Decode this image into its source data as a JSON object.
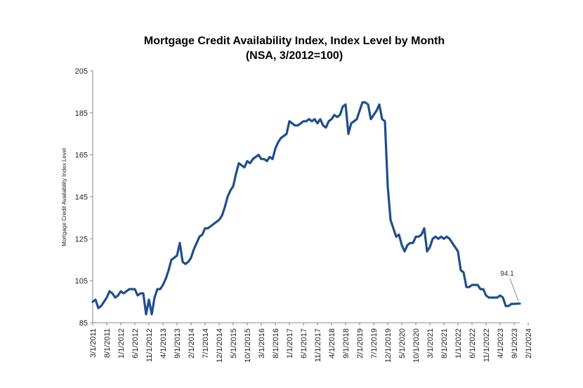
{
  "chart_data": {
    "type": "line",
    "title": "Mortgage Credit Availability Index, Index Level by Month",
    "subtitle": "(NSA, 3/2012=100)",
    "ylabel": "Mortgage Credit Availability Index Level",
    "xlabel": "",
    "ylim": [
      85,
      205
    ],
    "yticks": [
      "85",
      "105",
      "125",
      "145",
      "165",
      "185",
      "205"
    ],
    "xticks": [
      "3/1/2011",
      "8/1/2011",
      "1/1/2012",
      "6/1/2012",
      "11/1/2012",
      "4/1/2013",
      "9/1/2013",
      "2/1/2014",
      "7/1/2014",
      "12/1/2014",
      "5/1/2015",
      "10/1/2015",
      "3/1/2016",
      "8/1/2016",
      "1/1/2017",
      "6/1/2017",
      "11/1/2017",
      "4/1/2018",
      "9/1/2018",
      "2/1/2019",
      "7/1/2019",
      "12/1/2019",
      "5/1/2020",
      "10/1/2020",
      "3/1/2021",
      "8/1/2021",
      "1/1/2022",
      "6/1/2022",
      "11/1/2022",
      "4/1/2023",
      "9/1/2023",
      "2/1/2024"
    ],
    "grid": false,
    "legend": "none",
    "color": "#1f4e8c",
    "series": [
      {
        "values": [
          95,
          96,
          92,
          93,
          95,
          97,
          100,
          99,
          97,
          98,
          100,
          99,
          100,
          101,
          101,
          101,
          98,
          99,
          99,
          89,
          96,
          89,
          97,
          101,
          101,
          103,
          106,
          110,
          115,
          116,
          117,
          123,
          114,
          113,
          114,
          116,
          120,
          123,
          126,
          127,
          130,
          130,
          131,
          132,
          133,
          134,
          136,
          140,
          145,
          148,
          150,
          156,
          161,
          160,
          159,
          162,
          161,
          163,
          164,
          165,
          163,
          163,
          162,
          164,
          163,
          168,
          171,
          173,
          174,
          175,
          181,
          180,
          179,
          179,
          180,
          181,
          181,
          182,
          181,
          182,
          180,
          182,
          179,
          178,
          181,
          182,
          184,
          183,
          184,
          188,
          189,
          175,
          180,
          181,
          182,
          186,
          190,
          190,
          189,
          182,
          184,
          186,
          189,
          182,
          181,
          150,
          134,
          130,
          126,
          127,
          122,
          119,
          122,
          123,
          123,
          126,
          126,
          127,
          130,
          119,
          121,
          125,
          126,
          125,
          126,
          125,
          126,
          125,
          123,
          121,
          119,
          110,
          109,
          102,
          102,
          103,
          103,
          103,
          101,
          101,
          98,
          97,
          97,
          97,
          97,
          98,
          97,
          93,
          93,
          94,
          94,
          94.1,
          94.1
        ]
      }
    ],
    "annotations": [
      {
        "text": "94.1",
        "x": "last",
        "y": 94.1
      }
    ]
  }
}
